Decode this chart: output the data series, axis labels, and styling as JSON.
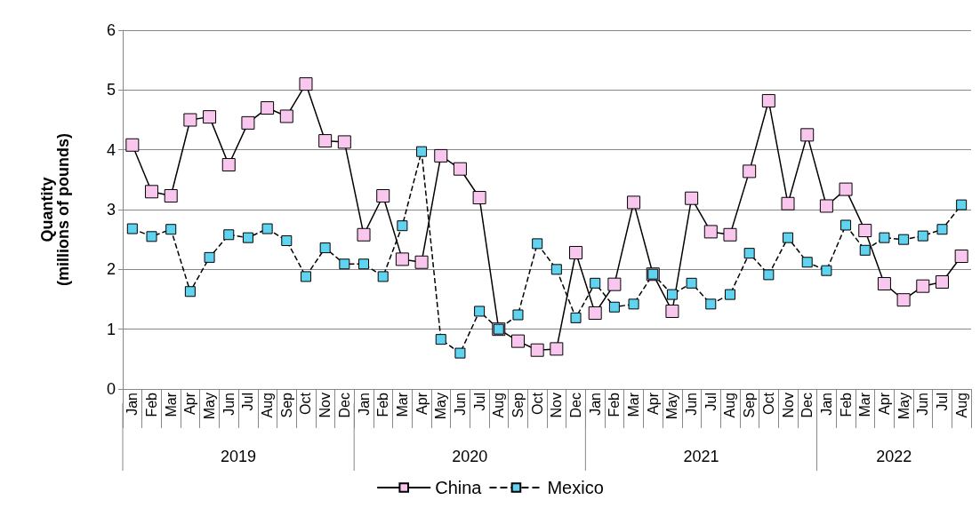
{
  "chart_data": {
    "type": "line",
    "ylabel": "Quantity\n(millions of pounds)",
    "categories": [
      "Jan",
      "Feb",
      "Mar",
      "Apr",
      "May",
      "Jun",
      "Jul",
      "Aug",
      "Sep",
      "Oct",
      "Nov",
      "Dec",
      "Jan",
      "Feb",
      "Mar",
      "Apr",
      "May",
      "Jun",
      "Jul",
      "Aug",
      "Sep",
      "Oct",
      "Nov",
      "Dec",
      "Jan",
      "Feb",
      "Mar",
      "Apr",
      "May",
      "Jun",
      "Jul",
      "Aug",
      "Sep",
      "Oct",
      "Nov",
      "Dec",
      "Jan",
      "Feb",
      "Mar",
      "Apr",
      "May",
      "Jun",
      "Jul",
      "Aug"
    ],
    "annotations": [
      "2019",
      "2020",
      "2021",
      "2022"
    ],
    "series": [
      {
        "name": "China",
        "color": "#f9c6ee",
        "line_style": "solid",
        "values": [
          4.08,
          3.3,
          3.23,
          4.5,
          4.55,
          3.75,
          4.45,
          4.7,
          4.56,
          5.1,
          4.15,
          4.13,
          2.58,
          3.23,
          2.17,
          2.12,
          3.9,
          3.68,
          3.2,
          1.0,
          0.8,
          0.65,
          0.67,
          2.28,
          1.27,
          1.75,
          3.12,
          1.92,
          1.3,
          3.19,
          2.63,
          2.58,
          3.64,
          4.82,
          3.1,
          4.25,
          3.06,
          3.34,
          2.65,
          1.76,
          1.49,
          1.72,
          1.79,
          2.22
        ]
      },
      {
        "name": "Mexico",
        "color": "#5fd3f0",
        "line_style": "dashed",
        "values": [
          2.68,
          2.55,
          2.67,
          1.63,
          2.2,
          2.58,
          2.53,
          2.68,
          2.48,
          1.88,
          2.36,
          2.09,
          2.09,
          1.88,
          2.73,
          3.97,
          0.83,
          0.6,
          1.3,
          1.0,
          1.24,
          2.43,
          2.0,
          1.19,
          1.77,
          1.37,
          1.42,
          1.92,
          1.58,
          1.77,
          1.42,
          1.58,
          2.27,
          1.91,
          2.53,
          2.12,
          1.98,
          2.74,
          2.32,
          2.53,
          2.5,
          2.56,
          2.67,
          3.08
        ]
      }
    ],
    "ylim": [
      0,
      6
    ],
    "yticks": [
      0,
      1,
      2,
      3,
      4,
      5,
      6
    ],
    "grid": "y",
    "legend": "bottom",
    "marker": "square"
  }
}
